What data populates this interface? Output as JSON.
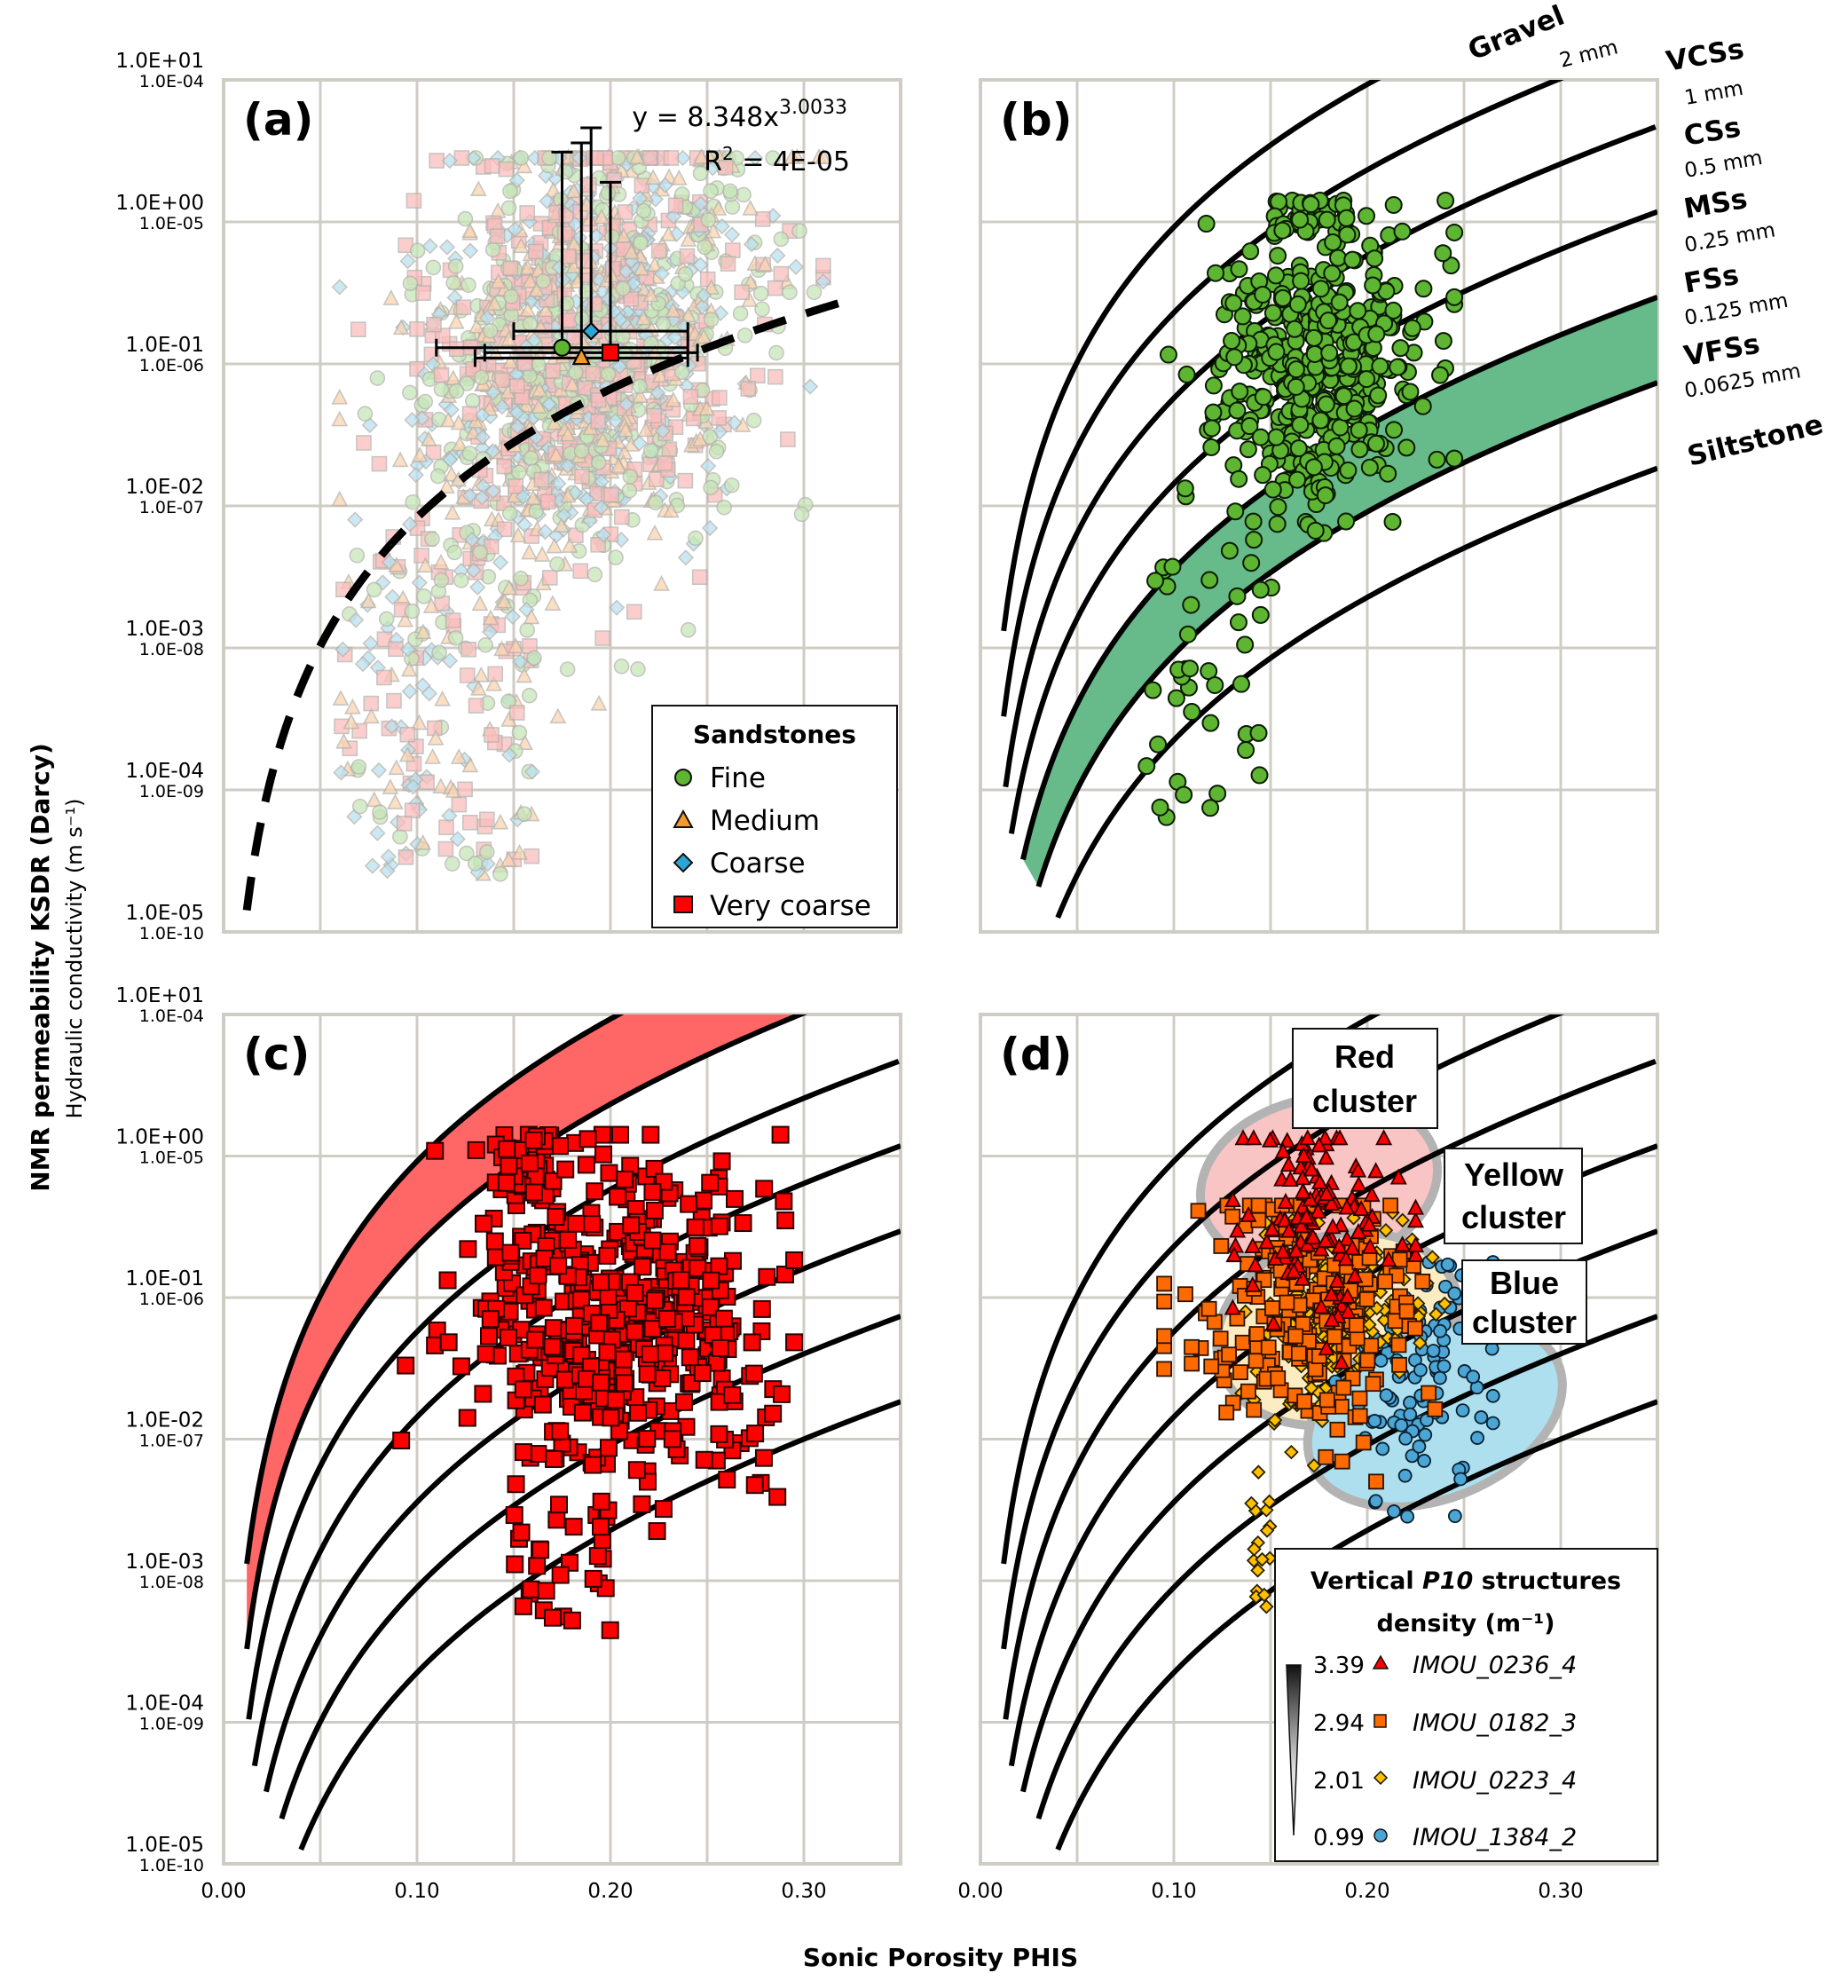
{
  "figure": {
    "y_axis_title": "NMR permeability KSDR (Darcy)",
    "y_axis_subtitle": "Hydraulic conductivity (m s⁻¹)",
    "x_axis_title": "Sonic Porosity PHIS"
  },
  "chart_data": [
    {
      "panel": "(a)",
      "type": "scatter",
      "xlabel": "Sonic Porosity PHIS",
      "ylabel": "NMR permeability KSDR (Darcy)",
      "y2label": "Hydraulic conductivity (m s⁻¹)",
      "xlim": [
        0,
        0.35
      ],
      "ylim": [
        1e-05,
        10
      ],
      "yscale": "log",
      "grid": true,
      "x_ticks": [
        "0.00",
        "0.10",
        "0.20",
        "0.30"
      ],
      "y_ticks": [
        "1.0E+01",
        "1.0E+00",
        "1.0E-01",
        "1.0E-02",
        "1.0E-03",
        "1.0E-04",
        "1.0E-05"
      ],
      "y2_ticks": [
        "1.0E-04",
        "1.0E-05",
        "1.0E-06",
        "1.0E-07",
        "1.0E-08",
        "1.0E-09",
        "1.0E-10"
      ],
      "annotation": {
        "equation_prefix": "y = 8.348x",
        "exponent": "3.0033",
        "r2_prefix": "R",
        "r2_sup": "2",
        "r2_value": " = 4E-05"
      },
      "trendline": {
        "form": "power",
        "a": 8.348,
        "b": 3.0033,
        "style": "dashed"
      },
      "legend": {
        "title": "Sandstones",
        "position": "bottom-right",
        "items": [
          {
            "label": "Fine",
            "marker": "circle",
            "color": "#5DB531"
          },
          {
            "label": "Medium",
            "marker": "triangle",
            "color": "#F39A2B"
          },
          {
            "label": "Coarse",
            "marker": "diamond",
            "color": "#2CA4D6"
          },
          {
            "label": "Very coarse",
            "marker": "square",
            "color": "#FF0000"
          }
        ]
      },
      "means": [
        {
          "series": "Fine",
          "x": 0.175,
          "y": 0.13,
          "x_err": [
            0.11,
            0.24
          ],
          "y_err_hi": 3.1
        },
        {
          "series": "Medium",
          "x": 0.185,
          "y": 0.11,
          "x_err": [
            0.13,
            0.24
          ],
          "y_err_hi": 3.6
        },
        {
          "series": "Coarse",
          "x": 0.19,
          "y": 0.17,
          "x_err": [
            0.15,
            0.24
          ],
          "y_err_hi": 4.6
        },
        {
          "series": "Very coarse",
          "x": 0.2,
          "y": 0.12,
          "x_err": [
            0.135,
            0.245
          ],
          "y_err_hi": 1.9
        }
      ],
      "series_note": "Dense cloud (~2000 pts) faded; porosity 0.05-0.31, permeability 1e-5 to 3"
    },
    {
      "panel": "(b)",
      "type": "scatter",
      "xlim": [
        0,
        0.35
      ],
      "ylim": [
        1e-05,
        10
      ],
      "yscale": "log",
      "series": [
        {
          "name": "Fine",
          "marker": "circle",
          "color": "#5DB531",
          "x_range": [
            0.08,
            0.24
          ],
          "y_range": [
            2e-05,
            1.5
          ]
        }
      ],
      "highlight_band": {
        "between": [
          "0.125 mm",
          "0.0625 mm"
        ],
        "color": "#67BA8A"
      },
      "grain_lines": [
        {
          "name": "Gravel",
          "size": "2 mm",
          "d_mm": 2
        },
        {
          "name": "VCSs",
          "size": "1 mm",
          "d_mm": 1
        },
        {
          "name": "CSs",
          "size": "0.5 mm",
          "d_mm": 0.5
        },
        {
          "name": "MSs",
          "size": "0.25 mm",
          "d_mm": 0.25
        },
        {
          "name": "FSs",
          "size": "0.125 mm",
          "d_mm": 0.125
        },
        {
          "name": "VFSs",
          "size": "0.0625 mm",
          "d_mm": 0.0625
        },
        {
          "name": "Siltstone",
          "size": "",
          "d_mm": 0.03125
        }
      ]
    },
    {
      "panel": "(c)",
      "type": "scatter",
      "xlim": [
        0,
        0.35
      ],
      "ylim": [
        1e-05,
        10
      ],
      "yscale": "log",
      "x_ticks": [
        "0.00",
        "0.10",
        "0.20",
        "0.30"
      ],
      "y_ticks": [
        "1.0E+01",
        "1.0E+00",
        "1.0E-01",
        "1.0E-02",
        "1.0E-03",
        "1.0E-04",
        "1.0E-05"
      ],
      "y2_ticks": [
        "1.0E-04",
        "1.0E-05",
        "1.0E-06",
        "1.0E-07",
        "1.0E-08",
        "1.0E-09",
        "1.0E-10"
      ],
      "series": [
        {
          "name": "Very coarse",
          "marker": "square",
          "color": "#FF0000",
          "x_range": [
            0.06,
            0.3
          ],
          "y_range": [
            0.0003,
            1.4
          ]
        }
      ],
      "highlight_band": {
        "between": [
          "2 mm",
          "1 mm"
        ],
        "color": "#FF6666"
      }
    },
    {
      "panel": "(d)",
      "type": "scatter",
      "xlim": [
        0,
        0.35
      ],
      "ylim": [
        1e-05,
        10
      ],
      "yscale": "log",
      "x_ticks": [
        "0.00",
        "0.10",
        "0.20",
        "0.30"
      ],
      "clusters": [
        {
          "label_line1": "Red",
          "label_line2": "cluster",
          "color": "#F9C4C4"
        },
        {
          "label_line1": "Yellow",
          "label_line2": "cluster",
          "color": "#FDEBC2"
        },
        {
          "label_line1": "Blue",
          "label_line2": "cluster",
          "color": "#ADDFEE"
        }
      ],
      "legend": {
        "title_pre": "Vertical ",
        "title_italic": "P10",
        "title_post": " structures",
        "title_line2": "density (m⁻¹)",
        "position": "bottom-right",
        "items": [
          {
            "value": "3.39",
            "marker": "triangle",
            "color": "#FF0000",
            "label": "IMOU_0236_4"
          },
          {
            "value": "2.94",
            "marker": "square",
            "color": "#FF6A00",
            "label": "IMOU_0182_3"
          },
          {
            "value": "2.01",
            "marker": "diamond",
            "color": "#FFC000",
            "label": "IMOU_0223_4"
          },
          {
            "value": "0.99",
            "marker": "circle",
            "color": "#4BA6D6",
            "label": "IMOU_1384_2"
          }
        ]
      }
    }
  ]
}
